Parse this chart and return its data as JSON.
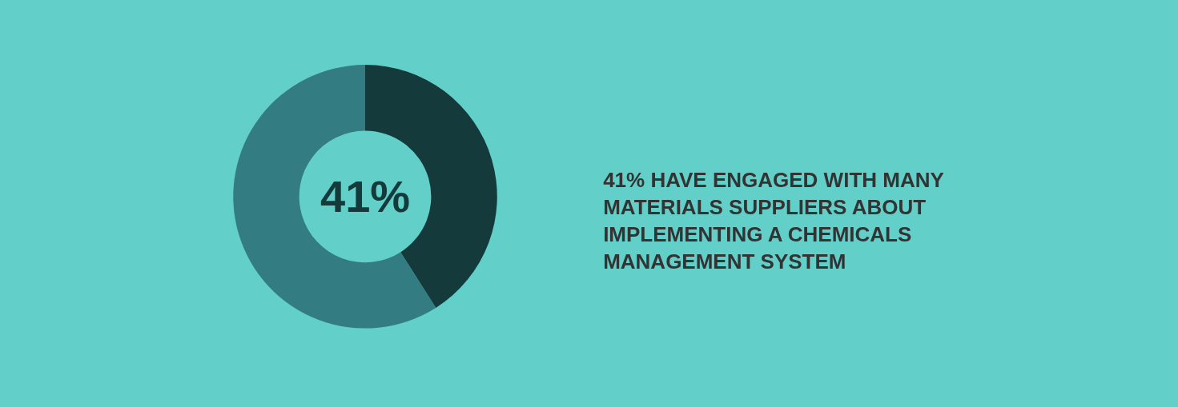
{
  "chart_data": {
    "type": "donut",
    "title": "41% HAVE ENGAGED WITH MANY MATERIALS SUPPLIERS ABOUT IMPLEMENTING A CHEMICALS MANAGEMENT SYSTEM",
    "categories": [
      null,
      null
    ],
    "values": [
      41,
      59
    ],
    "colors": [
      "#143a3c",
      "#327c82"
    ],
    "annotations": [
      "41%"
    ],
    "legend": false
  }
}
